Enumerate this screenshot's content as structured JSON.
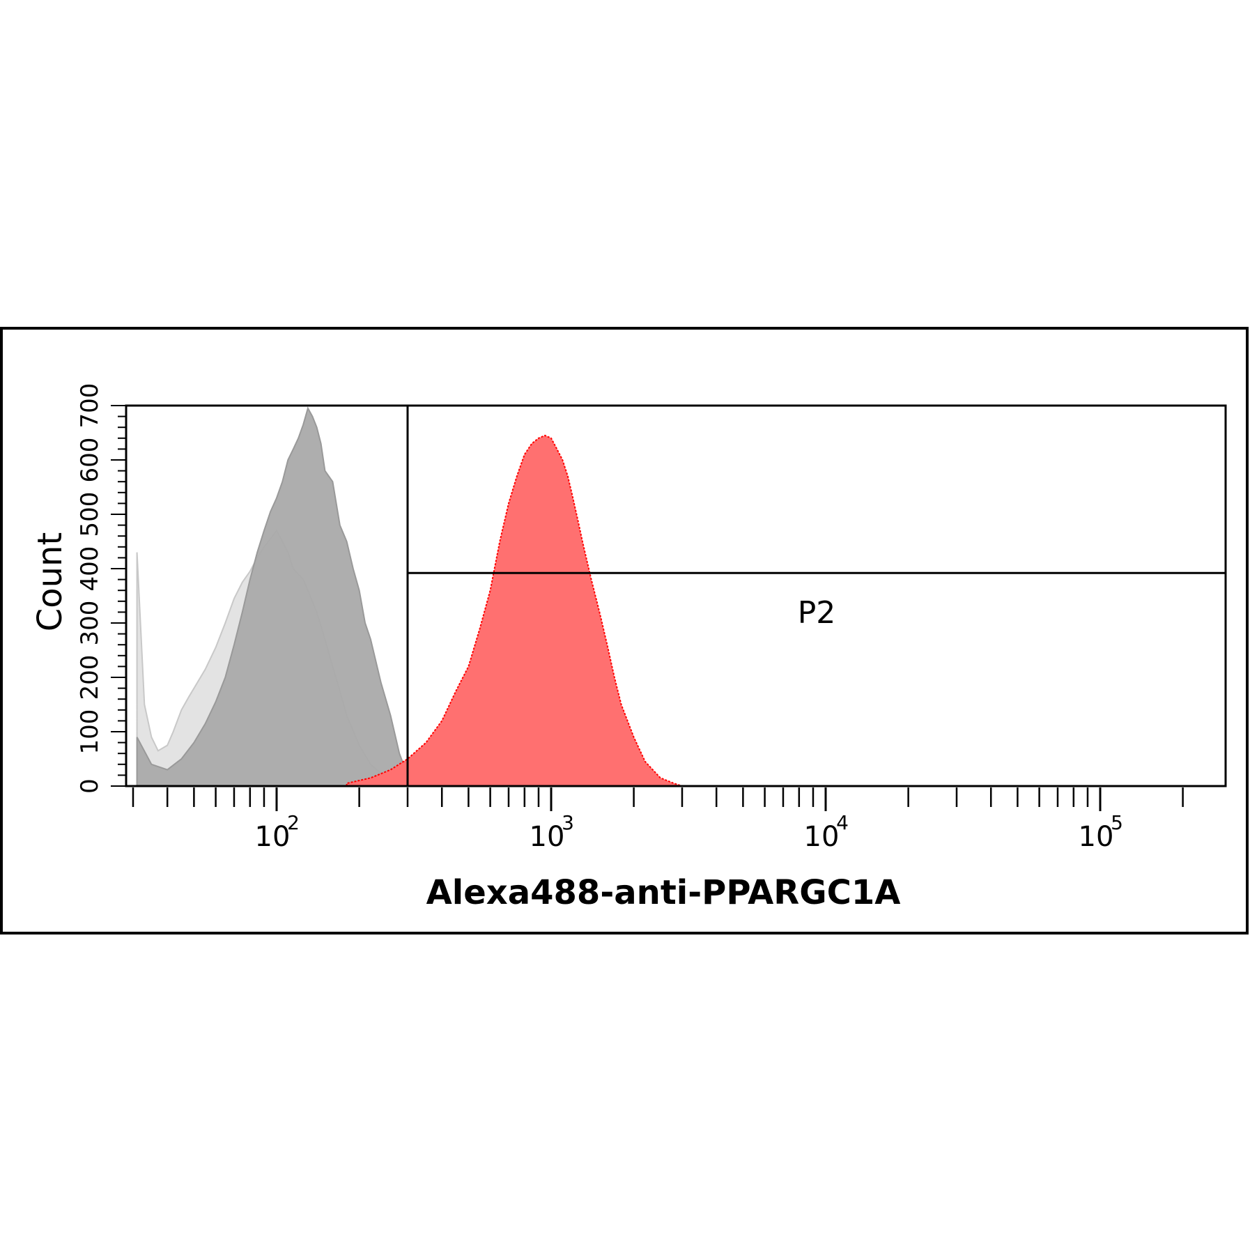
{
  "chart_data": {
    "type": "histogram",
    "xscale": "log",
    "xlim": [
      30,
      260000
    ],
    "ylim": [
      0,
      700
    ],
    "xlabel": "Alexa488-anti-PPARGC1A",
    "ylabel": "Count",
    "x_tick_labels": [
      {
        "value": 100,
        "base": "10",
        "exp": "2"
      },
      {
        "value": 1000,
        "base": "10",
        "exp": "3"
      },
      {
        "value": 10000,
        "base": "10",
        "exp": "4"
      },
      {
        "value": 100000,
        "base": "10",
        "exp": "5"
      }
    ],
    "y_ticks": [
      0,
      100,
      200,
      300,
      400,
      500,
      600,
      700
    ],
    "gate": {
      "name": "P2",
      "x_start": 300,
      "x_end": 260000
    },
    "series": [
      {
        "fill": "#e2e2e2",
        "stroke": "#c8c8c8",
        "x": [
          31,
          33,
          35,
          37,
          40,
          42,
          45,
          48,
          50,
          55,
          60,
          65,
          70,
          75,
          80,
          85,
          90,
          95,
          100,
          105,
          110,
          115,
          120,
          125,
          130,
          140,
          150,
          160,
          170,
          180,
          200,
          220,
          250,
          280
        ],
        "y": [
          430,
          150,
          90,
          65,
          75,
          100,
          140,
          165,
          180,
          215,
          255,
          300,
          345,
          375,
          395,
          420,
          440,
          455,
          470,
          450,
          430,
          400,
          390,
          380,
          360,
          320,
          270,
          220,
          175,
          130,
          75,
          40,
          15,
          0
        ]
      },
      {
        "fill": "#aaaaaa",
        "stroke": "#999999",
        "x": [
          31,
          35,
          40,
          45,
          50,
          55,
          60,
          65,
          70,
          75,
          80,
          85,
          90,
          95,
          100,
          105,
          110,
          115,
          120,
          125,
          130,
          135,
          140,
          145,
          150,
          160,
          170,
          180,
          190,
          200,
          210,
          220,
          240,
          260,
          280,
          300,
          330
        ],
        "y": [
          90,
          40,
          30,
          50,
          80,
          115,
          155,
          200,
          260,
          320,
          380,
          430,
          470,
          505,
          530,
          560,
          600,
          620,
          640,
          665,
          695,
          680,
          660,
          630,
          580,
          560,
          480,
          450,
          400,
          360,
          300,
          270,
          190,
          130,
          60,
          20,
          0
        ]
      },
      {
        "fill": "#ff7070",
        "stroke": "#ff0000",
        "x": [
          180,
          220,
          260,
          300,
          350,
          400,
          450,
          500,
          550,
          600,
          650,
          700,
          750,
          800,
          850,
          900,
          950,
          1000,
          1050,
          1100,
          1150,
          1200,
          1250,
          1300,
          1400,
          1500,
          1600,
          1700,
          1800,
          2000,
          2200,
          2500,
          2800,
          3000
        ],
        "y": [
          5,
          15,
          30,
          50,
          80,
          120,
          175,
          220,
          290,
          360,
          450,
          520,
          570,
          610,
          630,
          640,
          645,
          640,
          620,
          600,
          570,
          530,
          490,
          450,
          380,
          320,
          260,
          200,
          150,
          90,
          45,
          15,
          5,
          0
        ]
      }
    ]
  }
}
